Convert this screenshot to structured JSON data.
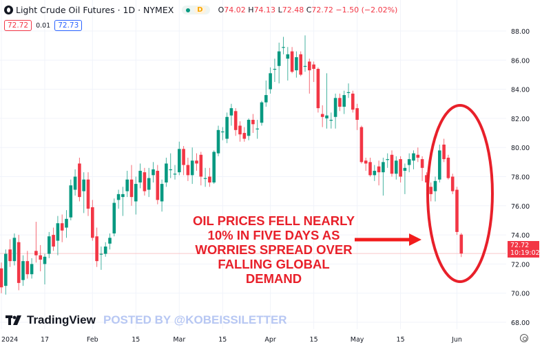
{
  "header": {
    "symbol_title": "Light Crude Oil Futures · 1D · NYMEX",
    "status_label": "D",
    "ohlc": {
      "o_label": "O",
      "o": "74.02",
      "h_label": "H",
      "h": "74.13",
      "l_label": "L",
      "l": "72.48",
      "c_label": "C",
      "c": "72.72",
      "change": "−1.50 (−2.02%)"
    },
    "sell_price": "72.72",
    "spread": "0.01",
    "buy_price": "72.73"
  },
  "price_tag": {
    "price": "72.72",
    "countdown": "10:19:02"
  },
  "annotation": {
    "lines": [
      "OIL PRICES FELL NEARLY",
      "10% IN FIVE DAYS AS",
      "WORRIES SPREAD OVER",
      "FALLING GLOBAL",
      "DEMAND"
    ],
    "color": "#e8202a"
  },
  "branding": {
    "logo_text": "TradingView",
    "watermark": "POSTED BY @KOBEISSILETTER"
  },
  "colors": {
    "up": "#089981",
    "down": "#f23645",
    "grid": "#f0f3fa",
    "axis_text": "#131722"
  },
  "chart_data": {
    "type": "candlestick",
    "ylim": [
      68,
      88
    ],
    "yticks": [
      "88.00",
      "86.00",
      "84.00",
      "82.00",
      "80.00",
      "78.00",
      "76.00",
      "74.00",
      "72.00",
      "70.00",
      "68.00"
    ],
    "xticks": [
      {
        "label": "2024",
        "index": 0
      },
      {
        "label": "17",
        "index": 10
      },
      {
        "label": "Feb",
        "index": 21
      },
      {
        "label": "15",
        "index": 31
      },
      {
        "label": "Mar",
        "index": 41
      },
      {
        "label": "15",
        "index": 51
      },
      {
        "label": "Apr",
        "index": 62
      },
      {
        "label": "15",
        "index": 72
      },
      {
        "label": "May",
        "index": 82
      },
      {
        "label": "15",
        "index": 92
      },
      {
        "label": "Jun",
        "index": 105
      }
    ],
    "grid": true,
    "last_price": 72.72,
    "ohlc": [
      [
        71.7,
        72.1,
        70.0,
        70.4
      ],
      [
        70.5,
        73.0,
        69.9,
        72.7
      ],
      [
        73.0,
        73.7,
        71.8,
        72.2
      ],
      [
        72.2,
        74.1,
        71.9,
        73.8
      ],
      [
        73.5,
        74.0,
        70.2,
        70.7
      ],
      [
        70.9,
        72.6,
        70.5,
        72.2
      ],
      [
        72.2,
        72.9,
        71.0,
        71.3
      ],
      [
        71.3,
        72.4,
        71.0,
        72.0
      ],
      [
        72.9,
        74.9,
        72.1,
        72.6
      ],
      [
        72.6,
        73.3,
        71.5,
        72.3
      ],
      [
        72.0,
        72.7,
        70.6,
        72.5
      ],
      [
        72.7,
        74.2,
        72.4,
        73.9
      ],
      [
        74.0,
        74.5,
        72.9,
        73.2
      ],
      [
        73.6,
        75.3,
        72.6,
        74.8
      ],
      [
        74.8,
        75.4,
        73.5,
        74.3
      ],
      [
        74.5,
        75.7,
        73.8,
        75.1
      ],
      [
        75.2,
        77.8,
        75.0,
        77.4
      ],
      [
        77.1,
        78.5,
        76.7,
        78.0
      ],
      [
        78.9,
        79.3,
        76.3,
        76.6
      ],
      [
        77.0,
        78.3,
        75.5,
        77.8
      ],
      [
        77.8,
        78.3,
        75.3,
        75.8
      ],
      [
        75.9,
        76.4,
        73.6,
        73.8
      ],
      [
        73.9,
        74.5,
        71.8,
        72.2
      ],
      [
        72.7,
        73.2,
        71.6,
        72.7
      ],
      [
        72.7,
        73.5,
        72.5,
        73.2
      ],
      [
        73.4,
        74.1,
        73.0,
        73.8
      ],
      [
        74.1,
        76.5,
        73.9,
        76.2
      ],
      [
        76.4,
        77.1,
        75.8,
        76.8
      ],
      [
        76.6,
        77.3,
        75.3,
        76.8
      ],
      [
        77.0,
        78.4,
        76.6,
        77.8
      ],
      [
        77.8,
        78.8,
        76.0,
        76.6
      ],
      [
        76.3,
        78.0,
        75.4,
        77.5
      ],
      [
        77.6,
        78.9,
        77.2,
        78.4
      ],
      [
        78.3,
        78.6,
        76.7,
        77.0
      ],
      [
        77.1,
        78.6,
        76.6,
        77.9
      ],
      [
        78.1,
        79.0,
        77.6,
        78.5
      ],
      [
        78.4,
        78.8,
        76.1,
        76.4
      ],
      [
        76.3,
        77.8,
        75.6,
        77.5
      ],
      [
        77.6,
        79.3,
        77.3,
        78.9
      ],
      [
        78.5,
        79.6,
        77.9,
        78.5
      ],
      [
        78.2,
        78.8,
        77.8,
        78.2
      ],
      [
        78.3,
        80.4,
        78.1,
        79.9
      ],
      [
        79.9,
        80.1,
        78.1,
        78.8
      ],
      [
        78.8,
        79.3,
        77.7,
        78.1
      ],
      [
        78.1,
        80.0,
        77.5,
        79.1
      ],
      [
        79.1,
        79.6,
        78.4,
        78.9
      ],
      [
        79.5,
        79.7,
        77.4,
        78.0
      ],
      [
        77.9,
        78.6,
        77.3,
        77.9
      ],
      [
        78.0,
        78.6,
        77.3,
        77.6
      ],
      [
        77.6,
        79.8,
        77.5,
        79.7
      ],
      [
        79.6,
        81.5,
        79.4,
        81.2
      ],
      [
        81.1,
        81.4,
        80.5,
        81.1
      ],
      [
        80.6,
        82.4,
        80.3,
        82.1
      ],
      [
        82.2,
        83.0,
        81.5,
        82.7
      ],
      [
        82.5,
        82.7,
        80.8,
        81.2
      ],
      [
        81.5,
        81.8,
        80.4,
        80.9
      ],
      [
        81.0,
        81.4,
        80.4,
        80.6
      ],
      [
        80.8,
        82.0,
        80.5,
        81.9
      ],
      [
        81.9,
        82.3,
        81.0,
        81.6
      ],
      [
        81.3,
        81.9,
        80.6,
        81.3
      ],
      [
        81.7,
        83.2,
        81.5,
        83.1
      ],
      [
        83.1,
        84.6,
        82.8,
        83.6
      ],
      [
        84.0,
        85.5,
        83.7,
        85.1
      ],
      [
        85.4,
        86.1,
        84.5,
        85.4
      ],
      [
        85.6,
        87.2,
        84.4,
        86.6
      ],
      [
        86.9,
        87.6,
        86.4,
        86.9
      ],
      [
        86.1,
        86.9,
        84.6,
        86.4
      ],
      [
        86.6,
        86.9,
        85.1,
        85.2
      ],
      [
        85.3,
        86.6,
        84.8,
        86.2
      ],
      [
        86.4,
        86.6,
        84.9,
        85.0
      ],
      [
        85.6,
        87.7,
        85.2,
        85.6
      ],
      [
        85.9,
        86.1,
        83.7,
        85.3
      ],
      [
        85.7,
        85.9,
        84.5,
        85.4
      ],
      [
        85.4,
        85.5,
        82.4,
        82.7
      ],
      [
        82.3,
        82.9,
        81.4,
        82.1
      ],
      [
        82.0,
        85.1,
        81.3,
        82.2
      ],
      [
        81.9,
        82.4,
        81.3,
        81.9
      ],
      [
        82.1,
        83.7,
        81.3,
        83.4
      ],
      [
        83.4,
        83.7,
        82.5,
        82.8
      ],
      [
        82.8,
        83.9,
        82.3,
        83.6
      ],
      [
        83.8,
        84.4,
        83.4,
        83.8
      ],
      [
        83.7,
        83.9,
        82.4,
        82.6
      ],
      [
        82.7,
        83.0,
        81.2,
        81.9
      ],
      [
        81.4,
        81.5,
        78.9,
        79.0
      ],
      [
        79.1,
        79.3,
        78.4,
        78.9
      ],
      [
        79.0,
        79.3,
        78.0,
        78.1
      ],
      [
        78.1,
        78.8,
        77.7,
        78.4
      ],
      [
        78.7,
        79.1,
        77.4,
        78.3
      ],
      [
        78.3,
        79.3,
        76.7,
        79.0
      ],
      [
        79.2,
        79.6,
        78.6,
        79.2
      ],
      [
        79.5,
        79.8,
        78.0,
        78.2
      ],
      [
        78.2,
        79.4,
        77.8,
        79.1
      ],
      [
        79.2,
        79.4,
        77.6,
        78.0
      ],
      [
        78.4,
        78.9,
        76.8,
        78.6
      ],
      [
        78.8,
        79.6,
        78.3,
        79.2
      ],
      [
        79.1,
        79.8,
        78.5,
        79.6
      ],
      [
        79.5,
        80.0,
        79.0,
        79.3
      ],
      [
        79.2,
        79.4,
        77.7,
        78.6
      ],
      [
        78.1,
        78.3,
        77.0,
        77.6
      ],
      [
        77.3,
        77.6,
        76.3,
        76.8
      ],
      [
        77.0,
        78.0,
        76.3,
        77.7
      ],
      [
        77.8,
        80.2,
        77.6,
        79.8
      ],
      [
        80.2,
        80.6,
        79.0,
        79.2
      ],
      [
        79.3,
        79.5,
        77.8,
        77.9
      ],
      [
        78.0,
        78.2,
        76.8,
        77.0
      ],
      [
        77.1,
        77.3,
        74.0,
        74.2
      ],
      [
        74.02,
        74.13,
        72.48,
        72.72
      ]
    ]
  }
}
